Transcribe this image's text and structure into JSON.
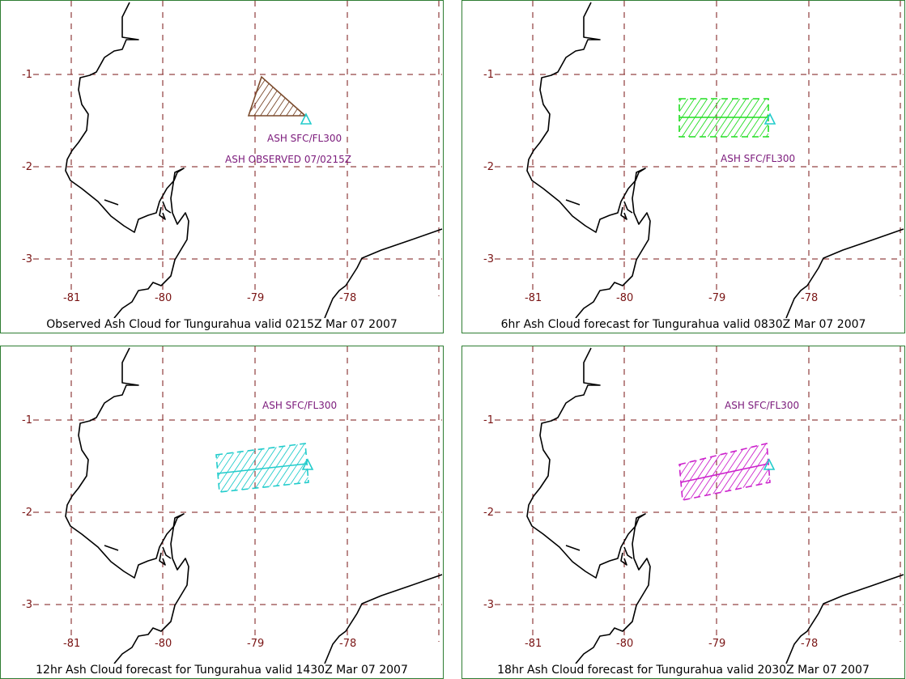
{
  "panels": [
    {
      "caption": "Observed Ash Cloud for Tungurahua valid 0215Z Mar 07 2007",
      "cloud_color": "#7a4a2c",
      "labels": [
        "ASH SFC/FL300",
        "ASH OBSERVED 07/0215Z"
      ]
    },
    {
      "caption": "6hr Ash Cloud forecast for Tungurahua valid 0830Z Mar 07 2007",
      "cloud_color": "#22dd22",
      "labels": [
        "ASH SFC/FL300"
      ]
    },
    {
      "caption": "12hr Ash Cloud forecast for Tungurahua valid 1430Z Mar 07 2007",
      "cloud_color": "#22cccc",
      "labels": [
        "ASH SFC/FL300"
      ]
    },
    {
      "caption": "18hr Ash Cloud forecast for Tungurahua valid 2030Z Mar 07 2007",
      "cloud_color": "#cc22cc",
      "labels": [
        "ASH SFC/FL300"
      ]
    }
  ],
  "axes": {
    "lon_ticks": [
      "-81",
      "-80",
      "-79",
      "-78"
    ],
    "lat_ticks": [
      "-1",
      "-2",
      "-3"
    ]
  },
  "colors": {
    "grid": "#7a1515",
    "border": "#2e7d32",
    "volcano_marker": "#22cccc",
    "label": "#7b1a7b"
  },
  "icons": {
    "volcano": "volcano-triangle-icon"
  }
}
